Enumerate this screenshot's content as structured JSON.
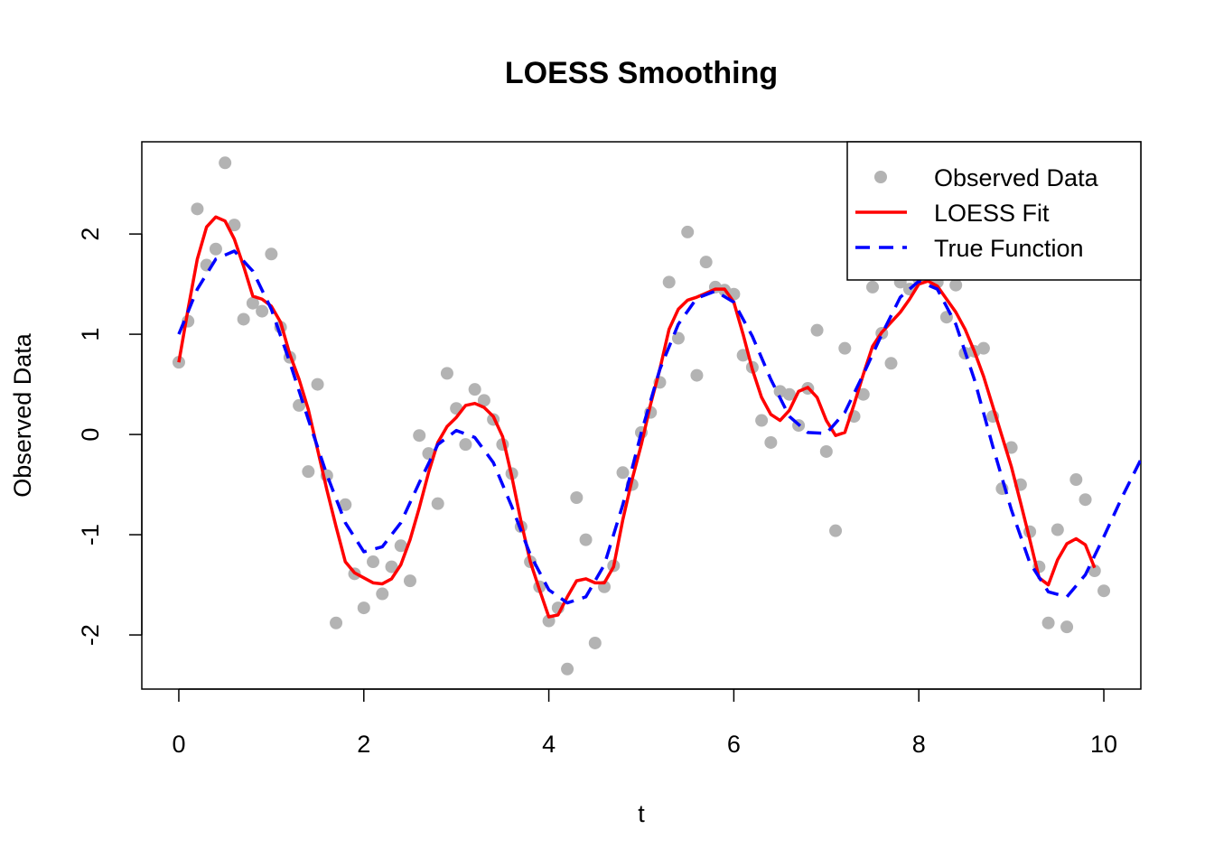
{
  "chart_data": {
    "type": "scatter",
    "title": "LOESS Smoothing",
    "x_label": "t",
    "y_label": "Observed Data",
    "xlim": [
      -0.4,
      10.4
    ],
    "ylim": [
      -2.54,
      2.92
    ],
    "xticks": [
      0,
      2,
      4,
      6,
      8,
      10
    ],
    "yticks": [
      -2,
      -1,
      0,
      1,
      2
    ],
    "grid": false,
    "legend": "topright",
    "series": [
      {
        "name": "Observed Data",
        "style": "points",
        "color": "#b3b3b3",
        "x": [
          0,
          0.1,
          0.2,
          0.3,
          0.4,
          0.5,
          0.6,
          0.7,
          0.8,
          0.9,
          1,
          1.1,
          1.2,
          1.3,
          1.4,
          1.5,
          1.6,
          1.7,
          1.8,
          1.9,
          2,
          2.1,
          2.2,
          2.3,
          2.4,
          2.5,
          2.6,
          2.7,
          2.8,
          2.9,
          3,
          3.1,
          3.2,
          3.3,
          3.4,
          3.5,
          3.6,
          3.7,
          3.8,
          3.9,
          4,
          4.1,
          4.2,
          4.3,
          4.4,
          4.5,
          4.6,
          4.7,
          4.8,
          4.9,
          5,
          5.1,
          5.2,
          5.3,
          5.4,
          5.5,
          5.6,
          5.7,
          5.8,
          5.9,
          6,
          6.1,
          6.2,
          6.3,
          6.4,
          6.5,
          6.6,
          6.7,
          6.8,
          6.9,
          7,
          7.1,
          7.2,
          7.3,
          7.4,
          7.5,
          7.6,
          7.7,
          7.8,
          7.9,
          8,
          8.1,
          8.2,
          8.3,
          8.4,
          8.5,
          8.6,
          8.7,
          8.8,
          8.9,
          9,
          9.1,
          9.2,
          9.3,
          9.4,
          9.5,
          9.6,
          9.7,
          9.8,
          9.9,
          10
        ],
        "values": [
          0.72,
          1.13,
          2.25,
          1.69,
          1.85,
          2.71,
          2.09,
          1.15,
          1.31,
          1.23,
          1.8,
          1.07,
          0.77,
          0.29,
          -0.37,
          0.5,
          -0.41,
          -1.88,
          -0.7,
          -1.39,
          -1.73,
          -1.27,
          -1.59,
          -1.32,
          -1.11,
          -1.46,
          -0.01,
          -0.19,
          -0.69,
          0.61,
          0.26,
          -0.1,
          0.45,
          0.34,
          0.15,
          -0.1,
          -0.39,
          -0.92,
          -1.27,
          -1.52,
          -1.86,
          -1.73,
          -2.34,
          -0.63,
          -1.05,
          -2.08,
          -1.52,
          -1.31,
          -0.38,
          -0.5,
          0.02,
          0.22,
          0.52,
          1.52,
          0.96,
          2.02,
          0.59,
          1.72,
          1.47,
          1.44,
          1.4,
          0.79,
          0.67,
          0.14,
          -0.08,
          0.43,
          0.4,
          0.09,
          0.46,
          1.04,
          -0.17,
          -0.96,
          0.86,
          0.18,
          0.4,
          1.47,
          1.01,
          0.71,
          1.52,
          1.45,
          1.55,
          1.6,
          1.52,
          1.17,
          1.49,
          0.81,
          0.83,
          0.86,
          0.18,
          -0.54,
          -0.13,
          -0.5,
          -0.97,
          -1.32,
          -1.88,
          -0.95,
          -1.92,
          -0.45,
          -0.65,
          -1.36,
          -1.56
        ]
      },
      {
        "name": "LOESS Fit",
        "style": "line",
        "dash": false,
        "color": "#ff0000",
        "x": [
          0,
          0.1,
          0.2,
          0.3,
          0.4,
          0.5,
          0.6,
          0.7,
          0.8,
          0.9,
          1,
          1.1,
          1.2,
          1.3,
          1.4,
          1.5,
          1.6,
          1.7,
          1.8,
          1.9,
          2,
          2.1,
          2.2,
          2.3,
          2.4,
          2.5,
          2.6,
          2.7,
          2.8,
          2.9,
          3,
          3.1,
          3.2,
          3.3,
          3.4,
          3.5,
          3.6,
          3.7,
          3.8,
          3.9,
          4,
          4.1,
          4.2,
          4.3,
          4.4,
          4.5,
          4.6,
          4.7,
          4.8,
          4.9,
          5,
          5.1,
          5.2,
          5.3,
          5.4,
          5.5,
          5.6,
          5.7,
          5.8,
          5.9,
          6,
          6.1,
          6.2,
          6.3,
          6.4,
          6.5,
          6.6,
          6.7,
          6.8,
          6.9,
          7,
          7.1,
          7.2,
          7.3,
          7.4,
          7.5,
          7.6,
          7.7,
          7.8,
          7.9,
          8,
          8.1,
          8.2,
          8.3,
          8.4,
          8.5,
          8.6,
          8.7,
          8.8,
          8.9,
          9,
          9.1,
          9.2,
          9.3,
          9.4,
          9.5,
          9.6,
          9.7,
          9.8,
          9.9
        ],
        "values": [
          0.72,
          1.25,
          1.75,
          2.07,
          2.17,
          2.13,
          1.95,
          1.68,
          1.38,
          1.35,
          1.28,
          1.12,
          0.8,
          0.55,
          0.25,
          -0.15,
          -0.55,
          -0.92,
          -1.27,
          -1.38,
          -1.43,
          -1.48,
          -1.49,
          -1.44,
          -1.3,
          -1.05,
          -0.73,
          -0.38,
          -0.08,
          0.08,
          0.17,
          0.29,
          0.31,
          0.27,
          0.18,
          -0.02,
          -0.42,
          -0.87,
          -1.27,
          -1.55,
          -1.82,
          -1.8,
          -1.62,
          -1.46,
          -1.44,
          -1.48,
          -1.48,
          -1.32,
          -0.85,
          -0.45,
          -0.1,
          0.3,
          0.65,
          1.05,
          1.25,
          1.34,
          1.37,
          1.41,
          1.45,
          1.45,
          1.32,
          1,
          0.65,
          0.37,
          0.2,
          0.14,
          0.24,
          0.43,
          0.47,
          0.37,
          0.14,
          -0.01,
          0.02,
          0.3,
          0.6,
          0.88,
          1.02,
          1.12,
          1.22,
          1.35,
          1.5,
          1.53,
          1.48,
          1.35,
          1.22,
          1.05,
          0.83,
          0.58,
          0.28,
          -0.02,
          -0.32,
          -0.68,
          -1.05,
          -1.43,
          -1.5,
          -1.25,
          -1.09,
          -1.04,
          -1.1,
          -1.33
        ]
      },
      {
        "name": "True Function",
        "style": "line",
        "dash": true,
        "color": "#0000ff",
        "x": [
          0,
          0.2,
          0.4,
          0.6,
          0.8,
          1,
          1.2,
          1.4,
          1.6,
          1.8,
          2,
          2.2,
          2.4,
          2.6,
          2.8,
          3,
          3.2,
          3.4,
          3.6,
          3.8,
          4,
          4.2,
          4.4,
          4.6,
          4.8,
          5,
          5.2,
          5.4,
          5.6,
          5.8,
          6,
          6.2,
          6.4,
          6.6,
          6.8,
          7,
          7.2,
          7.4,
          7.6,
          7.8,
          8,
          8.2,
          8.4,
          8.6,
          8.8,
          9,
          9.2,
          9.4,
          9.6,
          9.8,
          10,
          10.2,
          10.4
        ],
        "values": [
          1,
          1.45,
          1.75,
          1.83,
          1.63,
          1.25,
          0.72,
          0.15,
          -0.4,
          -0.88,
          -1.17,
          -1.12,
          -0.88,
          -0.48,
          -0.1,
          0.04,
          -0.03,
          -0.28,
          -0.72,
          -1.2,
          -1.55,
          -1.68,
          -1.62,
          -1.3,
          -0.7,
          0.02,
          0.65,
          1.1,
          1.36,
          1.43,
          1.32,
          0.98,
          0.55,
          0.18,
          0.02,
          0.01,
          0.22,
          0.6,
          1,
          1.37,
          1.53,
          1.45,
          1.1,
          0.55,
          -0.12,
          -0.75,
          -1.28,
          -1.57,
          -1.62,
          -1.4,
          -1.02,
          -0.62,
          -0.25
        ]
      }
    ]
  }
}
